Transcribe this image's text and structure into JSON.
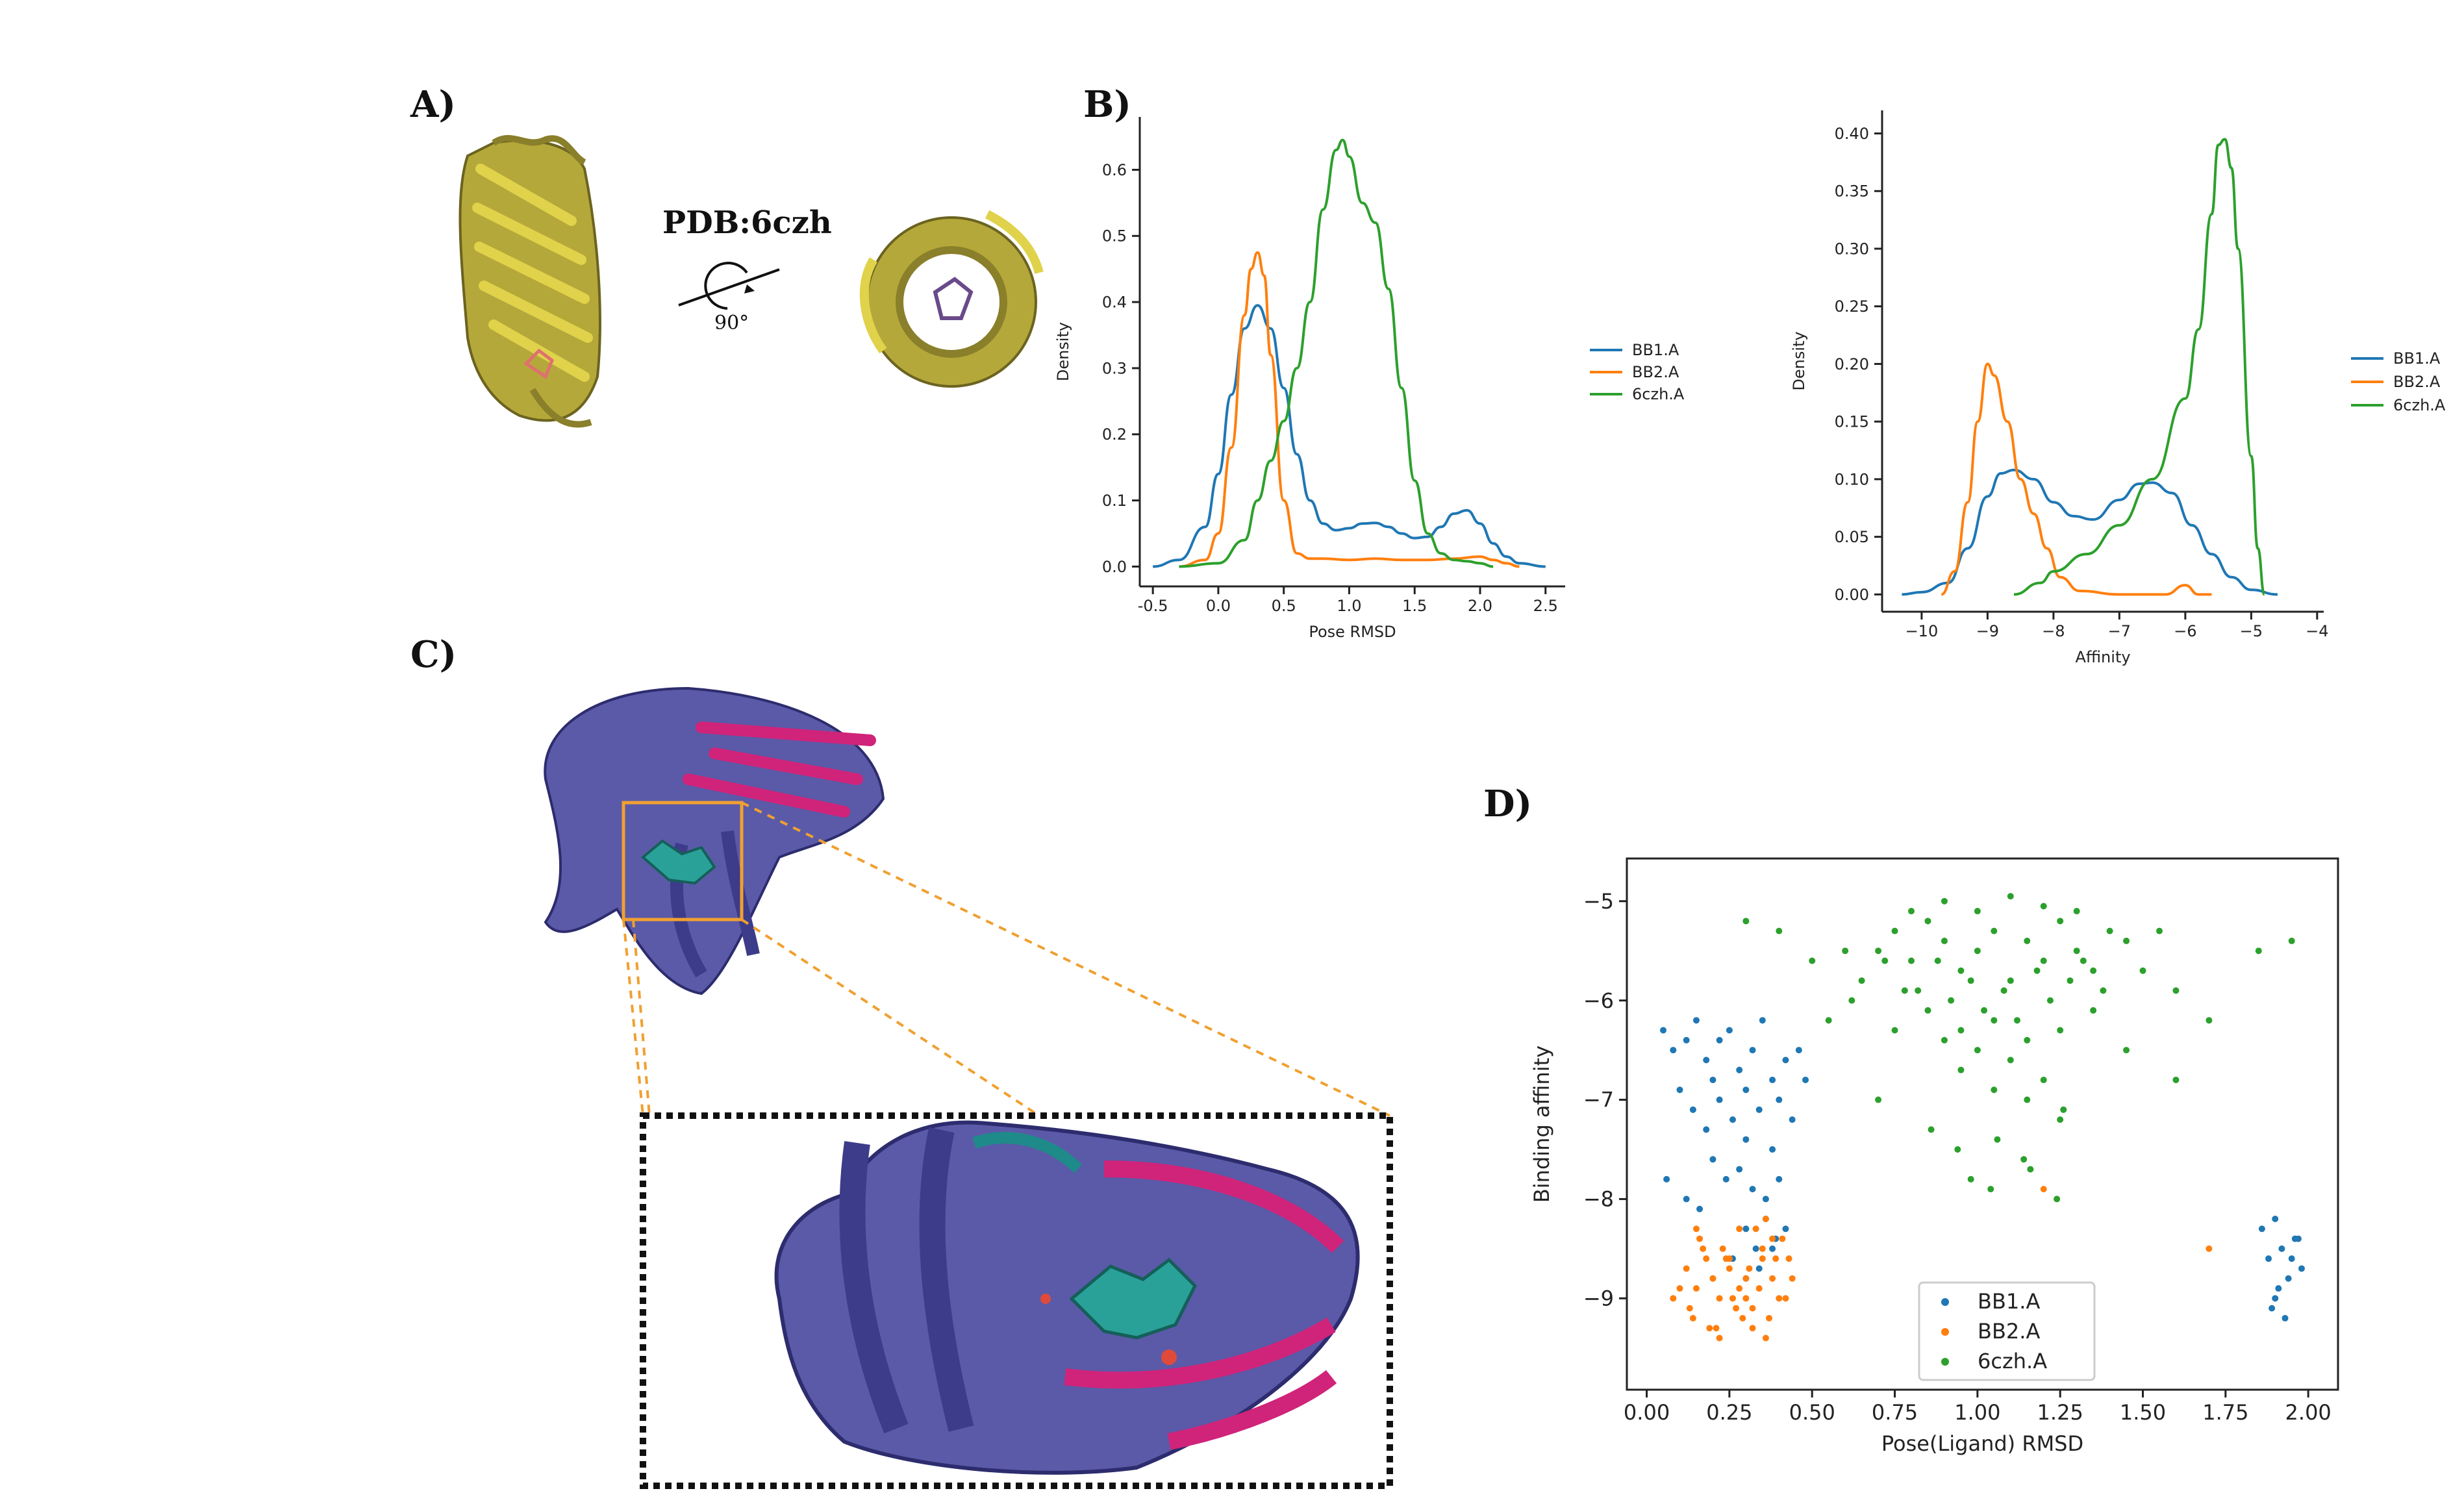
{
  "panels": {
    "a": "A)",
    "b": "B)",
    "c": "C)",
    "d": "D)"
  },
  "structure": {
    "pdb_label": "PDB:6czh",
    "rotation_label": "90°"
  },
  "colors": {
    "BB1.A": "#1f77b4",
    "BB2.A": "#ff7f0e",
    "6czh.A": "#2ca02c",
    "protein_yellow": "#b5a83a",
    "protein_purple": "#5b5aa8",
    "protein_magenta": "#d0237a",
    "ligand_teal": "#2aa198",
    "zoom_box": "#f0a030"
  },
  "chart_data": [
    {
      "id": "kde-rmsd",
      "type": "line",
      "xlabel": "Pose RMSD",
      "ylabel": "Density",
      "xlim": [
        -0.6,
        2.65
      ],
      "ylim": [
        -0.03,
        0.68
      ],
      "xticks": [
        -0.5,
        0.0,
        0.5,
        1.0,
        1.5,
        2.0,
        2.5
      ],
      "xtick_labels": [
        "-0.5",
        "0.0",
        "0.5",
        "1.0",
        "1.5",
        "2.0",
        "2.5"
      ],
      "yticks": [
        0.0,
        0.1,
        0.2,
        0.3,
        0.4,
        0.5,
        0.6
      ],
      "ytick_labels": [
        "0.0",
        "0.1",
        "0.2",
        "0.3",
        "0.4",
        "0.5",
        "0.6"
      ],
      "legend": [
        "BB1.A",
        "BB2.A",
        "6czh.A"
      ],
      "series": [
        {
          "name": "BB1.A",
          "x": [
            -0.5,
            -0.3,
            -0.1,
            0.0,
            0.1,
            0.2,
            0.3,
            0.4,
            0.5,
            0.6,
            0.7,
            0.8,
            0.9,
            1.0,
            1.1,
            1.2,
            1.3,
            1.4,
            1.5,
            1.6,
            1.7,
            1.8,
            1.9,
            2.0,
            2.1,
            2.2,
            2.3,
            2.5
          ],
          "y": [
            0.0,
            0.01,
            0.06,
            0.14,
            0.26,
            0.36,
            0.395,
            0.36,
            0.27,
            0.17,
            0.1,
            0.065,
            0.055,
            0.058,
            0.065,
            0.066,
            0.06,
            0.05,
            0.043,
            0.045,
            0.06,
            0.08,
            0.085,
            0.065,
            0.035,
            0.015,
            0.005,
            0.0
          ]
        },
        {
          "name": "BB2.A",
          "x": [
            -0.3,
            -0.1,
            0.0,
            0.1,
            0.2,
            0.25,
            0.3,
            0.35,
            0.4,
            0.5,
            0.6,
            0.7,
            0.8,
            1.0,
            1.2,
            1.4,
            1.6,
            1.8,
            2.0,
            2.1,
            2.2,
            2.3
          ],
          "y": [
            0.0,
            0.01,
            0.05,
            0.18,
            0.38,
            0.45,
            0.475,
            0.44,
            0.32,
            0.1,
            0.02,
            0.012,
            0.012,
            0.01,
            0.012,
            0.01,
            0.01,
            0.012,
            0.015,
            0.01,
            0.005,
            0.0
          ]
        },
        {
          "name": "6czh.A",
          "x": [
            -0.3,
            0.0,
            0.2,
            0.3,
            0.4,
            0.5,
            0.6,
            0.7,
            0.8,
            0.9,
            0.95,
            1.0,
            1.1,
            1.2,
            1.3,
            1.4,
            1.5,
            1.6,
            1.7,
            1.8,
            1.9,
            2.0,
            2.1
          ],
          "y": [
            0.0,
            0.005,
            0.04,
            0.1,
            0.16,
            0.22,
            0.3,
            0.4,
            0.54,
            0.63,
            0.645,
            0.62,
            0.55,
            0.52,
            0.42,
            0.27,
            0.13,
            0.05,
            0.02,
            0.01,
            0.008,
            0.005,
            0.0
          ]
        }
      ]
    },
    {
      "id": "kde-affinity",
      "type": "line",
      "xlabel": "Affinity",
      "ylabel": "Density",
      "xlim": [
        -10.6,
        -3.9
      ],
      "ylim": [
        -0.015,
        0.42
      ],
      "xticks": [
        -10,
        -9,
        -8,
        -7,
        -6,
        -5,
        -4
      ],
      "xtick_labels": [
        "−10",
        "−9",
        "−8",
        "−7",
        "−6",
        "−5",
        "−4"
      ],
      "yticks": [
        0.0,
        0.05,
        0.1,
        0.15,
        0.2,
        0.25,
        0.3,
        0.35,
        0.4
      ],
      "ytick_labels": [
        "0.00",
        "0.05",
        "0.10",
        "0.15",
        "0.20",
        "0.25",
        "0.30",
        "0.35",
        "0.40"
      ],
      "legend": [
        "BB1.A",
        "BB2.A",
        "6czh.A"
      ],
      "series": [
        {
          "name": "BB1.A",
          "x": [
            -10.3,
            -10.0,
            -9.6,
            -9.3,
            -9.0,
            -8.8,
            -8.6,
            -8.3,
            -8.0,
            -7.7,
            -7.4,
            -7.0,
            -6.7,
            -6.5,
            -6.2,
            -5.9,
            -5.6,
            -5.3,
            -5.0,
            -4.6
          ],
          "y": [
            0.0,
            0.002,
            0.01,
            0.04,
            0.085,
            0.105,
            0.108,
            0.1,
            0.08,
            0.068,
            0.065,
            0.082,
            0.096,
            0.097,
            0.088,
            0.06,
            0.035,
            0.015,
            0.004,
            0.0
          ]
        },
        {
          "name": "BB2.A",
          "x": [
            -9.7,
            -9.5,
            -9.3,
            -9.15,
            -9.0,
            -8.9,
            -8.7,
            -8.5,
            -8.3,
            -8.1,
            -7.9,
            -7.6,
            -7.0,
            -6.3,
            -6.0,
            -5.8,
            -5.6
          ],
          "y": [
            0.0,
            0.02,
            0.08,
            0.15,
            0.2,
            0.19,
            0.15,
            0.1,
            0.07,
            0.04,
            0.015,
            0.003,
            0.0,
            0.0,
            0.008,
            0.0,
            0.0
          ]
        },
        {
          "name": "6czh.A",
          "x": [
            -8.6,
            -8.2,
            -8.0,
            -7.5,
            -7.0,
            -6.5,
            -6.0,
            -5.8,
            -5.6,
            -5.5,
            -5.4,
            -5.3,
            -5.2,
            -5.0,
            -4.9,
            -4.8
          ],
          "y": [
            0.0,
            0.01,
            0.02,
            0.035,
            0.06,
            0.1,
            0.17,
            0.23,
            0.33,
            0.39,
            0.395,
            0.37,
            0.3,
            0.12,
            0.04,
            0.0
          ]
        }
      ]
    },
    {
      "id": "scatter-rmsd-affinity",
      "type": "scatter",
      "xlabel": "Pose(Ligand) RMSD",
      "ylabel": "Binding affinity",
      "xlim": [
        -0.06,
        2.09
      ],
      "ylim": [
        -9.92,
        -4.57
      ],
      "xticks": [
        0.0,
        0.25,
        0.5,
        0.75,
        1.0,
        1.25,
        1.5,
        1.75,
        2.0
      ],
      "xtick_labels": [
        "0.00",
        "0.25",
        "0.50",
        "0.75",
        "1.00",
        "1.25",
        "1.50",
        "1.75",
        "2.00"
      ],
      "yticks": [
        -9,
        -8,
        -7,
        -6,
        -5
      ],
      "ytick_labels": [
        "−9",
        "−8",
        "−7",
        "−6",
        "−5"
      ],
      "legend": [
        "BB1.A",
        "BB2.A",
        "6czh.A"
      ],
      "series": [
        {
          "name": "BB1.A",
          "x": [
            0.05,
            0.08,
            0.12,
            0.15,
            0.18,
            0.2,
            0.22,
            0.25,
            0.28,
            0.3,
            0.32,
            0.35,
            0.38,
            0.4,
            0.42,
            0.1,
            0.14,
            0.18,
            0.22,
            0.26,
            0.3,
            0.34,
            0.38,
            0.2,
            0.24,
            0.28,
            0.32,
            0.36,
            0.4,
            0.3,
            0.33,
            0.36,
            0.39,
            0.26,
            0.3,
            0.34,
            0.38,
            0.42,
            0.06,
            0.12,
            0.16,
            0.44,
            0.46,
            0.48,
            1.9,
            1.92,
            1.94,
            1.88,
            1.96,
            1.9,
            1.93,
            1.86,
            1.98,
            1.91,
            1.95,
            1.89,
            1.97
          ],
          "y": [
            -6.3,
            -6.5,
            -6.4,
            -6.2,
            -6.6,
            -6.8,
            -6.4,
            -6.3,
            -6.7,
            -6.9,
            -6.5,
            -6.2,
            -6.8,
            -7.0,
            -6.6,
            -6.9,
            -7.1,
            -7.3,
            -7.0,
            -7.2,
            -7.4,
            -7.1,
            -7.5,
            -7.6,
            -7.8,
            -7.7,
            -7.9,
            -8.0,
            -7.8,
            -8.3,
            -8.5,
            -8.2,
            -8.4,
            -8.6,
            -8.8,
            -8.7,
            -8.5,
            -8.3,
            -7.8,
            -8.0,
            -8.1,
            -7.2,
            -6.5,
            -6.8,
            -8.2,
            -8.5,
            -8.8,
            -8.6,
            -8.4,
            -9.0,
            -9.2,
            -8.3,
            -8.7,
            -8.9,
            -8.6,
            -9.1,
            -8.4
          ]
        },
        {
          "name": "BB2.A",
          "x": [
            0.12,
            0.15,
            0.18,
            0.2,
            0.22,
            0.25,
            0.28,
            0.3,
            0.32,
            0.35,
            0.38,
            0.4,
            0.14,
            0.17,
            0.21,
            0.24,
            0.27,
            0.31,
            0.34,
            0.37,
            0.41,
            0.44,
            0.1,
            0.13,
            0.16,
            0.19,
            0.23,
            0.26,
            0.29,
            0.33,
            0.36,
            0.39,
            0.42,
            0.2,
            0.25,
            0.3,
            0.35,
            0.28,
            0.32,
            0.38,
            0.22,
            0.36,
            0.15,
            0.43,
            0.08,
            1.2,
            1.7
          ],
          "y": [
            -8.7,
            -8.9,
            -8.6,
            -8.8,
            -9.0,
            -8.7,
            -8.9,
            -8.8,
            -9.1,
            -8.6,
            -8.8,
            -9.0,
            -9.2,
            -8.5,
            -9.3,
            -8.6,
            -9.1,
            -8.7,
            -8.9,
            -9.2,
            -8.4,
            -8.8,
            -8.9,
            -9.1,
            -8.4,
            -9.3,
            -8.5,
            -9.0,
            -9.2,
            -8.3,
            -9.4,
            -8.6,
            -9.0,
            -8.8,
            -8.6,
            -9.0,
            -8.5,
            -8.3,
            -9.3,
            -8.4,
            -9.4,
            -8.2,
            -8.3,
            -8.6,
            -9.0,
            -7.9,
            -8.5
          ]
        },
        {
          "name": "6czh.A",
          "x": [
            0.7,
            0.75,
            0.8,
            0.85,
            0.9,
            0.95,
            1.0,
            1.05,
            1.1,
            1.15,
            1.2,
            1.25,
            1.3,
            1.35,
            1.4,
            0.82,
            0.88,
            0.92,
            0.98,
            1.02,
            1.08,
            1.12,
            1.18,
            1.22,
            1.28,
            0.9,
            0.95,
            1.0,
            1.05,
            1.1,
            1.15,
            1.2,
            1.25,
            0.6,
            0.65,
            0.72,
            0.78,
            1.32,
            1.38,
            1.45,
            1.5,
            0.55,
            0.62,
            1.55,
            0.86,
            0.94,
            1.06,
            1.14,
            1.26,
            0.98,
            1.04,
            1.16,
            1.24,
            0.3,
            0.4,
            0.5,
            1.6,
            1.7,
            1.85,
            1.95,
            0.8,
            0.9,
            1.0,
            1.1,
            1.2,
            1.3,
            0.75,
            0.85,
            0.95,
            1.05,
            1.15,
            1.25,
            1.35,
            1.45,
            0.7,
            1.6
          ],
          "y": [
            -5.5,
            -5.3,
            -5.6,
            -5.2,
            -5.4,
            -5.7,
            -5.5,
            -5.3,
            -5.8,
            -5.4,
            -5.6,
            -5.2,
            -5.5,
            -5.7,
            -5.3,
            -5.9,
            -5.6,
            -6.0,
            -5.8,
            -6.1,
            -5.9,
            -6.2,
            -5.7,
            -6.0,
            -5.8,
            -6.4,
            -6.7,
            -6.5,
            -6.9,
            -6.6,
            -7.0,
            -6.8,
            -7.2,
            -5.5,
            -5.8,
            -5.6,
            -5.9,
            -5.6,
            -5.9,
            -5.4,
            -5.7,
            -6.2,
            -6.0,
            -5.3,
            -7.3,
            -7.5,
            -7.4,
            -7.6,
            -7.1,
            -7.8,
            -7.9,
            -7.7,
            -8.0,
            -5.2,
            -5.3,
            -5.6,
            -5.9,
            -6.2,
            -5.5,
            -5.4,
            -5.1,
            -5.0,
            -5.1,
            -4.95,
            -5.05,
            -5.1,
            -6.3,
            -6.1,
            -6.3,
            -6.2,
            -6.4,
            -6.3,
            -6.1,
            -6.5,
            -7.0,
            -6.8
          ]
        }
      ]
    }
  ]
}
